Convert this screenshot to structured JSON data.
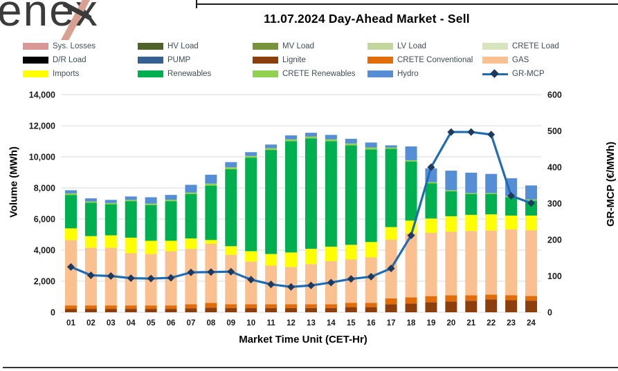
{
  "logo": {
    "text": "enex"
  },
  "header": {
    "title": "11.07.2024  Day-Ahead Market - Sell"
  },
  "legend": {
    "items": [
      {
        "label": "Sys. Losses",
        "color": "#d99796",
        "type": "swatch"
      },
      {
        "label": "HV Load",
        "color": "#4f6228",
        "type": "swatch"
      },
      {
        "label": "MV Load",
        "color": "#77933c",
        "type": "swatch"
      },
      {
        "label": "LV Load",
        "color": "#c3d69b",
        "type": "swatch"
      },
      {
        "label": "CRETE Load",
        "color": "#d7e4bd",
        "type": "swatch"
      },
      {
        "label": "D/R Load",
        "color": "#000000",
        "type": "swatch"
      },
      {
        "label": "PUMP",
        "color": "#376092",
        "type": "swatch"
      },
      {
        "label": "Lignite",
        "color": "#8c3f0c",
        "type": "swatch"
      },
      {
        "label": "CRETE Conventional",
        "color": "#e36c0a",
        "type": "swatch"
      },
      {
        "label": "GAS",
        "color": "#fac090",
        "type": "swatch"
      },
      {
        "label": "Imports",
        "color": "#ffff00",
        "type": "swatch"
      },
      {
        "label": "Renewables",
        "color": "#00b050",
        "type": "swatch"
      },
      {
        "label": "CRETE Renewables",
        "color": "#92d050",
        "type": "swatch"
      },
      {
        "label": "Hydro",
        "color": "#558ed5",
        "type": "swatch"
      },
      {
        "label": "GR-MCP",
        "color": "#1f6cb4",
        "type": "line"
      }
    ]
  },
  "chart_data": {
    "type": "bar",
    "subtype": "stacked-bar-with-line",
    "title": "11.07.2024  Day-Ahead Market - Sell",
    "categories": [
      "01",
      "02",
      "03",
      "04",
      "05",
      "06",
      "07",
      "08",
      "09",
      "10",
      "11",
      "12",
      "13",
      "14",
      "15",
      "16",
      "17",
      "18",
      "19",
      "20",
      "21",
      "22",
      "23",
      "24"
    ],
    "series": [
      {
        "name": "Lignite",
        "color": "#8c3f0c",
        "values": [
          220,
          220,
          220,
          220,
          220,
          220,
          260,
          300,
          280,
          280,
          280,
          280,
          280,
          280,
          330,
          330,
          520,
          560,
          640,
          700,
          740,
          820,
          780,
          750
        ]
      },
      {
        "name": "CRETE Conventional",
        "color": "#e36c0a",
        "values": [
          220,
          220,
          220,
          220,
          220,
          220,
          260,
          300,
          240,
          240,
          240,
          240,
          240,
          240,
          280,
          280,
          370,
          400,
          400,
          390,
          350,
          320,
          320,
          300
        ]
      },
      {
        "name": "GAS",
        "color": "#fac090",
        "values": [
          4210,
          3710,
          3710,
          3360,
          3310,
          3490,
          3560,
          3800,
          3180,
          2740,
          2480,
          2400,
          2580,
          2770,
          2790,
          2920,
          3780,
          4120,
          4070,
          4100,
          4140,
          4120,
          4230,
          4230
        ]
      },
      {
        "name": "Imports",
        "color": "#ffff00",
        "values": [
          750,
          750,
          800,
          1000,
          850,
          670,
          670,
          250,
          550,
          670,
          750,
          930,
          980,
          930,
          940,
          990,
          810,
          820,
          920,
          990,
          1040,
          1040,
          890,
          940
        ]
      },
      {
        "name": "Renewables",
        "color": "#00b050",
        "values": [
          2150,
          2150,
          2000,
          2350,
          2300,
          2550,
          2850,
          3500,
          4950,
          6020,
          6690,
          7160,
          7110,
          6790,
          6400,
          5960,
          5040,
          3800,
          2270,
          1600,
          1330,
          1300,
          1190,
          970
        ]
      },
      {
        "name": "CRETE Renewables",
        "color": "#92d050",
        "values": [
          100,
          80,
          80,
          80,
          90,
          90,
          100,
          130,
          130,
          110,
          120,
          120,
          120,
          120,
          120,
          120,
          80,
          80,
          80,
          70,
          70,
          70,
          70,
          70
        ]
      },
      {
        "name": "Hydro",
        "color": "#558ed5",
        "values": [
          200,
          200,
          200,
          220,
          410,
          310,
          500,
          570,
          330,
          240,
          230,
          250,
          240,
          280,
          300,
          320,
          140,
          890,
          880,
          1260,
          1310,
          1230,
          1140,
          900
        ]
      }
    ],
    "line_series": {
      "name": "GR-MCP",
      "axis": "right",
      "line_color": "#1f6cb4",
      "marker_color": "#1f3a5f",
      "marker": "diamond",
      "values": [
        125,
        102,
        100,
        94,
        93,
        95,
        110,
        111,
        112,
        90,
        77,
        70,
        74,
        82,
        92,
        98,
        121,
        212,
        400,
        497,
        497,
        490,
        321,
        301
      ]
    },
    "left_axis": {
      "label": "Volume (MWh)",
      "min": 0,
      "max": 14000,
      "step": 2000
    },
    "right_axis": {
      "label": "GR-MCP (€/MWh)",
      "min": 0,
      "max": 600,
      "step": 100
    },
    "xlabel": "Market Time Unit (CET-Hr)",
    "grid": "horizontal",
    "legend_position": "top"
  }
}
